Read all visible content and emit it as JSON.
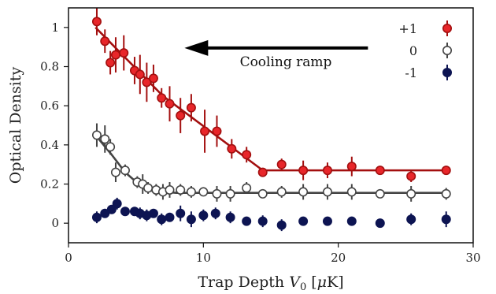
{
  "chart_data": {
    "type": "scatter",
    "xlabel": "Trap Depth",
    "xlabel_symbol": "V",
    "xlabel_subscript": "0",
    "xlabel_unit_open": " [",
    "xlabel_unit_mu": "μ",
    "xlabel_unit_rest": "K]",
    "ylabel": "Optical Density",
    "xlim": [
      0,
      30
    ],
    "ylim": [
      -0.1,
      1.1
    ],
    "xticks": [
      0,
      10,
      20,
      30
    ],
    "yticks": [
      0,
      0.2,
      0.4,
      0.6,
      0.8,
      1
    ],
    "xtick_labels": [
      "0",
      "10",
      "20",
      "30"
    ],
    "ytick_labels": [
      "0",
      "0.2",
      "0.4",
      "0.6",
      "0.8",
      "1"
    ],
    "grid": false,
    "legend_position": "top-right",
    "annotation": {
      "text": "Cooling ramp",
      "arrow_from_x": 22.2,
      "arrow_to_x": 8.6,
      "arrow_y": 0.895,
      "direction": "left"
    },
    "series": [
      {
        "name": "+1",
        "color": "#e8262a",
        "edge": "#a30f0f",
        "marker": "filled-circle",
        "points": [
          {
            "x": 2.1,
            "y": 1.03,
            "err": 0.07
          },
          {
            "x": 2.7,
            "y": 0.93,
            "err": 0.06
          },
          {
            "x": 3.1,
            "y": 0.82,
            "err": 0.06
          },
          {
            "x": 3.5,
            "y": 0.86,
            "err": 0.09
          },
          {
            "x": 4.1,
            "y": 0.87,
            "err": 0.09
          },
          {
            "x": 4.9,
            "y": 0.78,
            "err": 0.07
          },
          {
            "x": 5.3,
            "y": 0.76,
            "err": 0.1
          },
          {
            "x": 5.8,
            "y": 0.72,
            "err": 0.1
          },
          {
            "x": 6.3,
            "y": 0.74,
            "err": 0.07
          },
          {
            "x": 6.9,
            "y": 0.64,
            "err": 0.05
          },
          {
            "x": 7.5,
            "y": 0.61,
            "err": 0.09
          },
          {
            "x": 8.3,
            "y": 0.55,
            "err": 0.09
          },
          {
            "x": 9.1,
            "y": 0.59,
            "err": 0.07
          },
          {
            "x": 10.1,
            "y": 0.47,
            "err": 0.11
          },
          {
            "x": 11.0,
            "y": 0.47,
            "err": 0.08
          },
          {
            "x": 12.1,
            "y": 0.38,
            "err": 0.05
          },
          {
            "x": 13.2,
            "y": 0.35,
            "err": 0.04
          },
          {
            "x": 14.4,
            "y": 0.26,
            "err": 0.02
          },
          {
            "x": 15.8,
            "y": 0.3,
            "err": 0.03
          },
          {
            "x": 17.4,
            "y": 0.27,
            "err": 0.05
          },
          {
            "x": 19.2,
            "y": 0.27,
            "err": 0.04
          },
          {
            "x": 21.0,
            "y": 0.29,
            "err": 0.05
          },
          {
            "x": 23.1,
            "y": 0.27,
            "err": 0.02
          },
          {
            "x": 25.4,
            "y": 0.24,
            "err": 0.03
          },
          {
            "x": 28.0,
            "y": 0.27,
            "err": 0.02
          }
        ],
        "fit": [
          [
            2.0,
            1.0
          ],
          [
            7.0,
            0.65
          ],
          [
            14.4,
            0.27
          ],
          [
            28.0,
            0.27
          ]
        ]
      },
      {
        "name": "0",
        "color": "#ffffff",
        "edge": "#444444",
        "marker": "open-circle",
        "points": [
          {
            "x": 2.1,
            "y": 0.45,
            "err": 0.06
          },
          {
            "x": 2.7,
            "y": 0.43,
            "err": 0.07
          },
          {
            "x": 3.1,
            "y": 0.39,
            "err": 0.04
          },
          {
            "x": 3.5,
            "y": 0.26,
            "err": 0.05
          },
          {
            "x": 4.2,
            "y": 0.27,
            "err": 0.03
          },
          {
            "x": 5.1,
            "y": 0.21,
            "err": 0.03
          },
          {
            "x": 5.5,
            "y": 0.2,
            "err": 0.05
          },
          {
            "x": 5.9,
            "y": 0.18,
            "err": 0.03
          },
          {
            "x": 6.5,
            "y": 0.17,
            "err": 0.03
          },
          {
            "x": 7.0,
            "y": 0.16,
            "err": 0.04
          },
          {
            "x": 7.5,
            "y": 0.17,
            "err": 0.04
          },
          {
            "x": 8.3,
            "y": 0.17,
            "err": 0.03
          },
          {
            "x": 9.1,
            "y": 0.16,
            "err": 0.03
          },
          {
            "x": 10.0,
            "y": 0.16,
            "err": 0.02
          },
          {
            "x": 11.0,
            "y": 0.15,
            "err": 0.04
          },
          {
            "x": 12.0,
            "y": 0.15,
            "err": 0.04
          },
          {
            "x": 13.2,
            "y": 0.18,
            "err": 0.03
          },
          {
            "x": 14.4,
            "y": 0.15,
            "err": 0.02
          },
          {
            "x": 15.8,
            "y": 0.16,
            "err": 0.03
          },
          {
            "x": 17.4,
            "y": 0.16,
            "err": 0.04
          },
          {
            "x": 19.2,
            "y": 0.16,
            "err": 0.04
          },
          {
            "x": 21.0,
            "y": 0.16,
            "err": 0.04
          },
          {
            "x": 23.1,
            "y": 0.15,
            "err": 0.02
          },
          {
            "x": 25.4,
            "y": 0.15,
            "err": 0.04
          },
          {
            "x": 28.0,
            "y": 0.15,
            "err": 0.03
          }
        ],
        "fit": [
          [
            2.0,
            0.45
          ],
          [
            3.2,
            0.35
          ],
          [
            4.2,
            0.26
          ],
          [
            5.2,
            0.2
          ],
          [
            6.2,
            0.165
          ],
          [
            8.0,
            0.155
          ],
          [
            28.0,
            0.155
          ]
        ]
      },
      {
        "name": "-1",
        "color": "#0d1452",
        "edge": "#0d1452",
        "marker": "filled-circle",
        "points": [
          {
            "x": 2.1,
            "y": 0.03,
            "err": 0.03
          },
          {
            "x": 2.7,
            "y": 0.05,
            "err": 0.02
          },
          {
            "x": 3.2,
            "y": 0.07,
            "err": 0.02
          },
          {
            "x": 3.6,
            "y": 0.1,
            "err": 0.03
          },
          {
            "x": 4.2,
            "y": 0.06,
            "err": 0.02
          },
          {
            "x": 4.9,
            "y": 0.06,
            "err": 0.02
          },
          {
            "x": 5.3,
            "y": 0.05,
            "err": 0.03
          },
          {
            "x": 5.8,
            "y": 0.04,
            "err": 0.03
          },
          {
            "x": 6.3,
            "y": 0.05,
            "err": 0.02
          },
          {
            "x": 6.9,
            "y": 0.02,
            "err": 0.03
          },
          {
            "x": 7.5,
            "y": 0.03,
            "err": 0.02
          },
          {
            "x": 8.3,
            "y": 0.05,
            "err": 0.04
          },
          {
            "x": 9.1,
            "y": 0.02,
            "err": 0.04
          },
          {
            "x": 10.0,
            "y": 0.04,
            "err": 0.03
          },
          {
            "x": 10.9,
            "y": 0.05,
            "err": 0.03
          },
          {
            "x": 12.0,
            "y": 0.03,
            "err": 0.03
          },
          {
            "x": 13.2,
            "y": 0.01,
            "err": 0.02
          },
          {
            "x": 14.4,
            "y": 0.01,
            "err": 0.03
          },
          {
            "x": 15.8,
            "y": -0.01,
            "err": 0.03
          },
          {
            "x": 17.4,
            "y": 0.01,
            "err": 0.02
          },
          {
            "x": 19.2,
            "y": 0.01,
            "err": 0.02
          },
          {
            "x": 21.0,
            "y": 0.01,
            "err": 0.02
          },
          {
            "x": 23.1,
            "y": 0.0,
            "err": 0.02
          },
          {
            "x": 25.4,
            "y": 0.02,
            "err": 0.03
          },
          {
            "x": 28.0,
            "y": 0.02,
            "err": 0.04
          }
        ],
        "fit": []
      }
    ]
  }
}
